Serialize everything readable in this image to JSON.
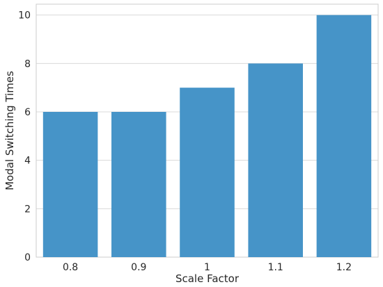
{
  "chart_data": {
    "type": "bar",
    "categories": [
      "0.8",
      "0.9",
      "1",
      "1.1",
      "1.2"
    ],
    "values": [
      6,
      6,
      7,
      8,
      10
    ],
    "xlabel": "Scale Factor",
    "ylabel": "Modal Switching Times",
    "ylim": [
      0,
      10.45
    ],
    "yticks": [
      0,
      2,
      4,
      6,
      8,
      10
    ],
    "grid": true,
    "legend": "none",
    "colors": {
      "bar": "#4694c8",
      "grid": "#d9d9d9",
      "frame": "#cccccc",
      "text": "#262626"
    }
  }
}
